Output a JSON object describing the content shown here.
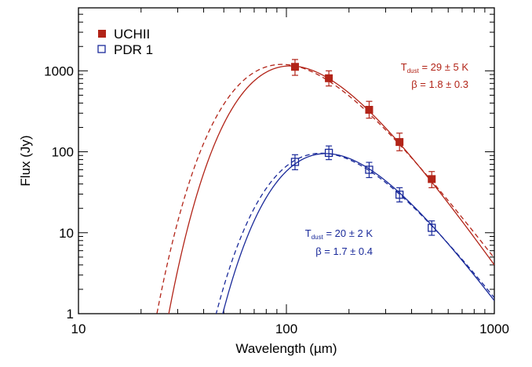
{
  "chart_data": {
    "type": "scatter",
    "xlabel": "Wavelength (µm)",
    "ylabel": "Flux (Jy)",
    "xscale": "log",
    "yscale": "log",
    "xlim": [
      10,
      1000
    ],
    "ylim": [
      1,
      6000
    ],
    "xticks": [
      {
        "value": 10,
        "label": "10"
      },
      {
        "value": 100,
        "label": "100"
      },
      {
        "value": 1000,
        "label": "1000"
      }
    ],
    "yticks": [
      {
        "value": 1,
        "label": "1"
      },
      {
        "value": 10,
        "label": "10"
      },
      {
        "value": 100,
        "label": "100"
      },
      {
        "value": 1000,
        "label": "1000"
      }
    ],
    "legend_position": "top-left",
    "series": [
      {
        "name": "UCHII",
        "color": "#b22418",
        "marker": "filled-square",
        "points": [
          {
            "x": 110,
            "y": 1120,
            "yerr_lo": 880,
            "yerr_hi": 1380
          },
          {
            "x": 160,
            "y": 810,
            "yerr_lo": 650,
            "yerr_hi": 1000
          },
          {
            "x": 250,
            "y": 330,
            "yerr_lo": 260,
            "yerr_hi": 420
          },
          {
            "x": 350,
            "y": 132,
            "yerr_lo": 103,
            "yerr_hi": 170
          },
          {
            "x": 500,
            "y": 46,
            "yerr_lo": 36,
            "yerr_hi": 57
          }
        ],
        "fit_solid": {
          "T": 29,
          "beta": 1.8,
          "peak_flux": 1150
        },
        "fit_dashed": {
          "T": 34,
          "beta": 1.5,
          "peak_flux": 1200
        },
        "annotation": {
          "T_label": "T",
          "T_sub": "dust",
          "T_text": " = 29 ± 5 K",
          "beta_text": "β = 1.8 ± 0.3"
        }
      },
      {
        "name": "PDR 1",
        "color": "#1a2a9a",
        "marker": "open-square",
        "points": [
          {
            "x": 110,
            "y": 75,
            "yerr_lo": 60,
            "yerr_hi": 92
          },
          {
            "x": 160,
            "y": 97,
            "yerr_lo": 80,
            "yerr_hi": 118
          },
          {
            "x": 250,
            "y": 60,
            "yerr_lo": 48,
            "yerr_hi": 74
          },
          {
            "x": 350,
            "y": 29.5,
            "yerr_lo": 24,
            "yerr_hi": 36
          },
          {
            "x": 500,
            "y": 11.5,
            "yerr_lo": 9.3,
            "yerr_hi": 14
          }
        ],
        "fit_solid": {
          "T": 20,
          "beta": 1.7,
          "peak_flux": 95
        },
        "fit_dashed": {
          "T": 22,
          "beta": 1.5,
          "peak_flux": 96
        },
        "annotation": {
          "T_label": "T",
          "T_sub": "dust",
          "T_text": " = 20 ± 2 K",
          "beta_text": "β = 1.7 ± 0.4"
        }
      }
    ]
  }
}
